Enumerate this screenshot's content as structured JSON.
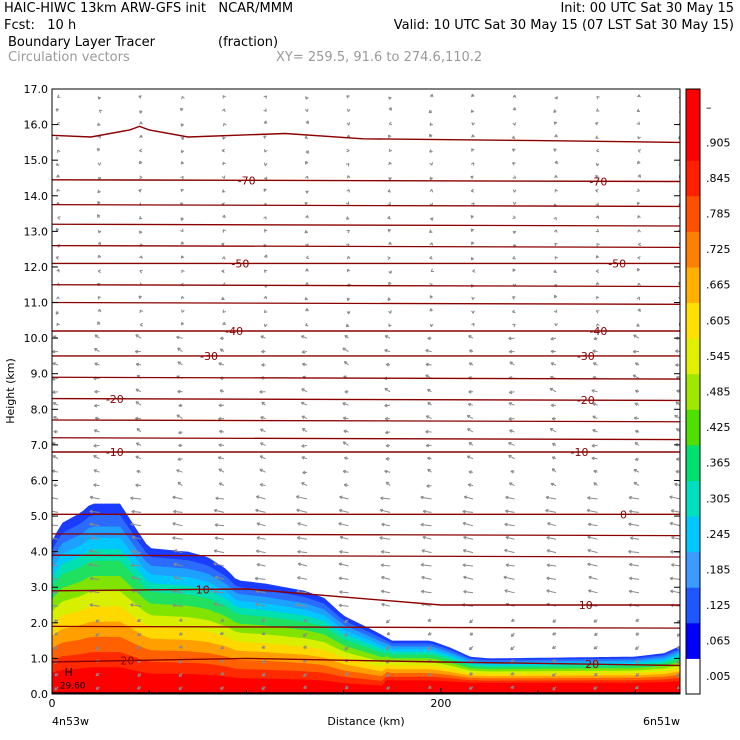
{
  "header": {
    "line1_left": "HAIC-HIWC 13km ARW-GFS init   NCAR/MMM",
    "line1_right": "Init: 00 UTC Sat 30 May 15",
    "line2_left": "Fcst:   10 h",
    "line2_right": "Valid: 10 UTC Sat 30 May 15 (07 LST Sat 30 May 15)",
    "field_name": "Boundary Layer Tracer",
    "field_units": "(fraction)",
    "overlay_name": "Circulation vectors",
    "xy_text": "XY= 259.5, 91.6 to 274.6,110.2"
  },
  "colors": {
    "contour": "#8b0000",
    "vector": "#8a8a8a",
    "colorbar": [
      "#ffffff",
      "#0000ff",
      "#1e56ff",
      "#3b9bff",
      "#00c8ff",
      "#00e0c0",
      "#00e070",
      "#50e000",
      "#a0e800",
      "#e0f000",
      "#ffe000",
      "#ffb000",
      "#ff8000",
      "#ff5000",
      "#ff2000",
      "#ff0000",
      "#ff0000"
    ]
  },
  "chart_data": {
    "type": "heatmap",
    "title": "Boundary Layer Tracer",
    "xlabel": "Distance (km)",
    "ylabel": "Height (km)",
    "xlim": [
      0,
      323
    ],
    "ylim": [
      0,
      17
    ],
    "x_ticks": [
      {
        "value": 0,
        "label": "0"
      },
      {
        "value": 200,
        "label": "200"
      }
    ],
    "x_end_labels": {
      "left": "4n53w",
      "right": "6n51w"
    },
    "y_ticks": [
      "0.0",
      "1.0",
      "2.0",
      "3.0",
      "4.0",
      "5.0",
      "6.0",
      "7.0",
      "8.0",
      "9.0",
      "10.0",
      "11.0",
      "12.0",
      "13.0",
      "14.0",
      "15.0",
      "16.0",
      "17.0"
    ],
    "colorbar_labels": [
      ".005",
      ".065",
      ".125",
      ".185",
      ".245",
      ".305",
      ".365",
      ".425",
      ".485",
      ".545",
      ".605",
      ".665",
      ".725",
      ".785",
      ".845",
      ".905",
      "–"
    ],
    "tracer_top_profile": [
      [
        0,
        4.3
      ],
      [
        5,
        4.8
      ],
      [
        15,
        5.1
      ],
      [
        20,
        5.35
      ],
      [
        35,
        5.35
      ],
      [
        45,
        4.5
      ],
      [
        50,
        4.1
      ],
      [
        70,
        4.0
      ],
      [
        80,
        3.85
      ],
      [
        90,
        3.5
      ],
      [
        95,
        3.2
      ],
      [
        110,
        3.1
      ],
      [
        130,
        2.9
      ],
      [
        140,
        2.7
      ],
      [
        150,
        2.2
      ],
      [
        165,
        1.8
      ],
      [
        175,
        1.5
      ],
      [
        195,
        1.5
      ],
      [
        205,
        1.3
      ],
      [
        215,
        1.05
      ],
      [
        225,
        1.0
      ],
      [
        300,
        1.05
      ],
      [
        315,
        1.15
      ],
      [
        323,
        1.35
      ]
    ],
    "temperature_contours": [
      {
        "label": "20",
        "heights": [
          [
            0,
            0.9
          ],
          [
            100,
            1.0
          ],
          [
            200,
            0.9
          ],
          [
            323,
            0.8
          ]
        ]
      },
      {
        "label": "10",
        "heights": [
          [
            0,
            2.9
          ],
          [
            100,
            2.95
          ],
          [
            200,
            2.5
          ],
          [
            323,
            2.5
          ]
        ]
      },
      {
        "label": "0",
        "heights": [
          [
            0,
            5.05
          ],
          [
            160,
            5.05
          ],
          [
            323,
            5.05
          ]
        ]
      },
      {
        "label": "-10",
        "heights": [
          [
            0,
            6.8
          ],
          [
            323,
            6.8
          ]
        ]
      },
      {
        "label": "-20",
        "heights": [
          [
            0,
            8.3
          ],
          [
            323,
            8.25
          ]
        ]
      },
      {
        "label": "-30",
        "heights": [
          [
            0,
            9.5
          ],
          [
            323,
            9.5
          ]
        ]
      },
      {
        "label": "-40",
        "heights": [
          [
            0,
            10.2
          ],
          [
            323,
            10.2
          ]
        ]
      },
      {
        "label": "-50",
        "heights": [
          [
            0,
            12.1
          ],
          [
            323,
            12.1
          ]
        ]
      },
      {
        "label": "-70",
        "heights": [
          [
            0,
            14.45
          ],
          [
            323,
            14.4
          ]
        ]
      }
    ],
    "extra_isotherms_km": [
      0.0,
      1.9,
      3.9,
      4.5,
      7.2,
      7.7,
      8.9,
      11.0,
      11.5,
      12.6,
      13.2,
      13.75
    ],
    "tropopause_line": [
      [
        0,
        15.7
      ],
      [
        20,
        15.65
      ],
      [
        40,
        15.85
      ],
      [
        45,
        15.95
      ],
      [
        50,
        15.85
      ],
      [
        70,
        15.65
      ],
      [
        120,
        15.75
      ],
      [
        160,
        15.6
      ],
      [
        250,
        15.55
      ],
      [
        323,
        15.5
      ]
    ],
    "high_marker": {
      "label": "H",
      "sublabel": "29.60"
    }
  }
}
